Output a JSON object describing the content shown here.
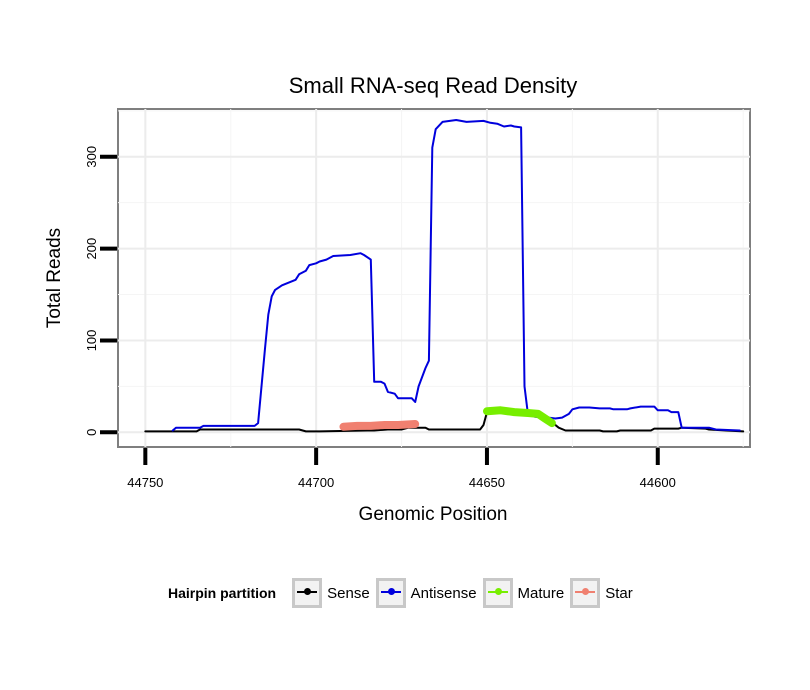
{
  "chart_data": {
    "type": "line",
    "title": "Small RNA-seq Read Density",
    "xlabel": "Genomic Position",
    "ylabel": "Total Reads",
    "xlim": [
      44758,
      44573
    ],
    "ylim": [
      -16,
      352
    ],
    "x_reversed": true,
    "xticks": [
      44750,
      44700,
      44650,
      44600
    ],
    "xtick_labels": [
      "44750",
      "44700",
      "44650",
      "44600"
    ],
    "yticks": [
      0,
      100,
      200,
      300
    ],
    "ytick_labels": [
      "0",
      "100",
      "200",
      "300"
    ],
    "grid": true,
    "legend": {
      "title": "Hairpin partition",
      "position": "bottom",
      "entries": [
        "Sense",
        "Antisense",
        "Mature",
        "Star"
      ]
    },
    "series": [
      {
        "name": "Sense",
        "color": "#000000",
        "width": 2,
        "points": [
          [
            44750,
            1
          ],
          [
            44742,
            1
          ],
          [
            44735,
            1
          ],
          [
            44734,
            3
          ],
          [
            44712,
            3
          ],
          [
            44708,
            3
          ],
          [
            44705,
            3
          ],
          [
            44703,
            1
          ],
          [
            44699,
            1
          ],
          [
            44685,
            2
          ],
          [
            44683,
            2
          ],
          [
            44679,
            3
          ],
          [
            44675,
            3
          ],
          [
            44673,
            5
          ],
          [
            44668,
            5
          ],
          [
            44667,
            3
          ],
          [
            44661,
            3
          ],
          [
            44652,
            3
          ],
          [
            44651,
            8
          ],
          [
            44650,
            22
          ],
          [
            44648,
            24
          ],
          [
            44643,
            22
          ],
          [
            44638,
            20
          ],
          [
            44634,
            17
          ],
          [
            44631,
            11
          ],
          [
            44629,
            5
          ],
          [
            44627,
            2
          ],
          [
            44617,
            2
          ],
          [
            44616,
            1
          ],
          [
            44612,
            1
          ],
          [
            44611,
            2
          ],
          [
            44602,
            2
          ],
          [
            44601,
            4
          ],
          [
            44594,
            4
          ],
          [
            44593,
            5
          ],
          [
            44586,
            4
          ],
          [
            44585,
            3
          ],
          [
            44580,
            2
          ],
          [
            44575,
            1
          ]
        ]
      },
      {
        "name": "Antisense",
        "color": "#0000dd",
        "width": 2,
        "points": [
          [
            44742,
            2
          ],
          [
            44741,
            5
          ],
          [
            44734,
            5
          ],
          [
            44733,
            7
          ],
          [
            44718,
            7
          ],
          [
            44717,
            10
          ],
          [
            44716,
            50
          ],
          [
            44715,
            90
          ],
          [
            44714,
            128
          ],
          [
            44713,
            148
          ],
          [
            44712,
            155
          ],
          [
            44710,
            160
          ],
          [
            44708,
            163
          ],
          [
            44706,
            166
          ],
          [
            44705,
            172
          ],
          [
            44703,
            176
          ],
          [
            44702,
            182
          ],
          [
            44700,
            184
          ],
          [
            44699,
            186
          ],
          [
            44697,
            188
          ],
          [
            44695,
            192
          ],
          [
            44690,
            193
          ],
          [
            44687,
            195
          ],
          [
            44686,
            193
          ],
          [
            44684,
            188
          ],
          [
            44683,
            55
          ],
          [
            44681,
            55
          ],
          [
            44680,
            53
          ],
          [
            44679,
            44
          ],
          [
            44677,
            42
          ],
          [
            44676,
            37
          ],
          [
            44672,
            37
          ],
          [
            44671,
            33
          ],
          [
            44670,
            50
          ],
          [
            44668,
            70
          ],
          [
            44667,
            78
          ],
          [
            44666,
            310
          ],
          [
            44665,
            330
          ],
          [
            44663,
            338
          ],
          [
            44659,
            340
          ],
          [
            44656,
            338
          ],
          [
            44651,
            339
          ],
          [
            44649,
            337
          ],
          [
            44647,
            336
          ],
          [
            44645,
            333
          ],
          [
            44643,
            334
          ],
          [
            44642,
            333
          ],
          [
            44640,
            332
          ],
          [
            44639,
            50
          ],
          [
            44638,
            20
          ],
          [
            44636,
            17
          ],
          [
            44632,
            16
          ],
          [
            44630,
            15
          ],
          [
            44628,
            16
          ],
          [
            44626,
            20
          ],
          [
            44625,
            25
          ],
          [
            44623,
            27
          ],
          [
            44620,
            27
          ],
          [
            44617,
            26
          ],
          [
            44614,
            26
          ],
          [
            44613,
            25
          ],
          [
            44609,
            25
          ],
          [
            44608,
            26
          ],
          [
            44605,
            28
          ],
          [
            44603,
            28
          ],
          [
            44601,
            28
          ],
          [
            44600,
            24
          ],
          [
            44597,
            24
          ],
          [
            44596,
            22
          ],
          [
            44594,
            22
          ],
          [
            44593,
            5
          ],
          [
            44585,
            5
          ],
          [
            44583,
            3
          ],
          [
            44576,
            2
          ]
        ]
      },
      {
        "name": "Star",
        "color": "#f08070",
        "width": 8,
        "points": [
          [
            44692,
            6
          ],
          [
            44688,
            7
          ],
          [
            44684,
            7
          ],
          [
            44680,
            8
          ],
          [
            44676,
            8
          ],
          [
            44671,
            9
          ]
        ]
      },
      {
        "name": "Mature",
        "color": "#77ee00",
        "width": 8,
        "points": [
          [
            44650,
            23
          ],
          [
            44646,
            24
          ],
          [
            44642,
            22
          ],
          [
            44638,
            21
          ],
          [
            44635,
            20
          ],
          [
            44633,
            15
          ],
          [
            44631,
            10
          ]
        ]
      }
    ]
  }
}
